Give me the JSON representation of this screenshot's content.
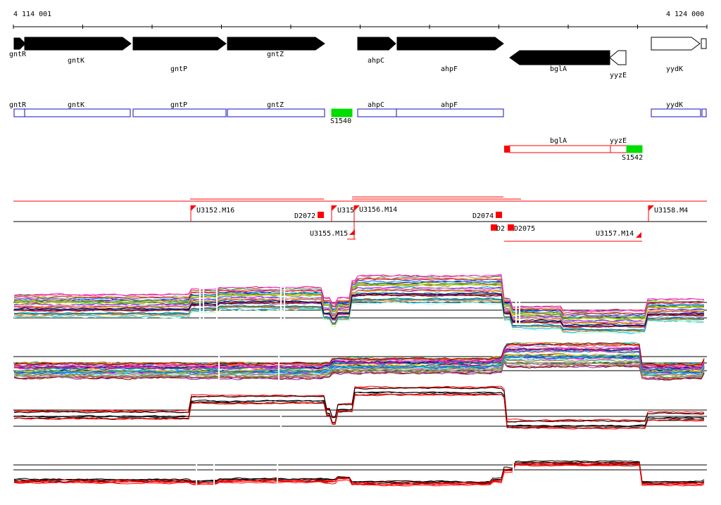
{
  "ruler": {
    "start": "4 114 001",
    "end": "4 124 000"
  },
  "genes_top": [
    {
      "name": "gntR",
      "label": "gntR",
      "dir": "+",
      "fill": "#000000"
    },
    {
      "name": "gntK",
      "label": "gntK",
      "dir": "+",
      "fill": "#000000"
    },
    {
      "name": "gntP",
      "label": "gntP",
      "dir": "+",
      "fill": "#000000"
    },
    {
      "name": "gntZ",
      "label": "gntZ",
      "dir": "+",
      "fill": "#000000"
    },
    {
      "name": "ahpC",
      "label": "ahpC",
      "dir": "+",
      "fill": "#000000"
    },
    {
      "name": "ahpF",
      "label": "ahpF",
      "dir": "+",
      "fill": "#000000"
    },
    {
      "name": "bglA",
      "label": "bglA",
      "dir": "-",
      "fill": "#000000"
    },
    {
      "name": "yyzE",
      "label": "yyzE",
      "dir": "-",
      "fill": "#ffffff"
    },
    {
      "name": "yydK",
      "label": "yydK",
      "dir": "+",
      "fill": "#ffffff"
    }
  ],
  "transcripts_forward": [
    {
      "name": "gntR",
      "label": "gntR"
    },
    {
      "name": "gntK",
      "label": "gntK"
    },
    {
      "name": "gntP",
      "label": "gntP"
    },
    {
      "name": "gntZ",
      "label": "gntZ"
    },
    {
      "name": "S1540",
      "label": "S1540"
    },
    {
      "name": "ahpC",
      "label": "ahpC"
    },
    {
      "name": "ahpF",
      "label": "ahpF"
    },
    {
      "name": "yydK",
      "label": "yydK"
    }
  ],
  "transcripts_reverse": [
    {
      "name": "bglA",
      "label": "bglA"
    },
    {
      "name": "yyzE",
      "label": "yyzE"
    },
    {
      "name": "S1542",
      "label": "S1542"
    }
  ],
  "segments": [
    {
      "name": "U3152.M16",
      "label": "U3152.M16"
    },
    {
      "name": "D2072",
      "label": "D2072"
    },
    {
      "name": "U3153",
      "label": "U315"
    },
    {
      "name": "U3154-overlap",
      "label": "U3156.M14"
    },
    {
      "name": "U3155.M15",
      "label": "U3155.M15"
    },
    {
      "name": "D2074",
      "label": "D2074"
    },
    {
      "name": "D2075a",
      "label": "D2"
    },
    {
      "name": "D2075",
      "label": "D2075"
    },
    {
      "name": "U3157.M14",
      "label": "U3157.M14"
    },
    {
      "name": "U3158.M4",
      "label": "U3158.M4"
    }
  ],
  "colors": {
    "forward_transcript": "#1010c0",
    "reverse_transcript": "#ff0000",
    "small_rna": "#00dd00",
    "segment": "#ff0000",
    "axis": "#000000"
  },
  "expression_panels": [
    {
      "name": "panel-1",
      "style": "multicolor"
    },
    {
      "name": "panel-2",
      "style": "multicolor"
    },
    {
      "name": "panel-3",
      "style": "red-black"
    },
    {
      "name": "panel-4",
      "style": "red-black"
    }
  ]
}
